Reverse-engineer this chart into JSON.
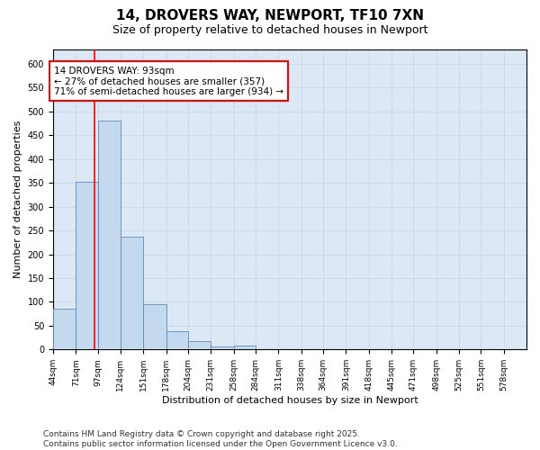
{
  "title1": "14, DROVERS WAY, NEWPORT, TF10 7XN",
  "title2": "Size of property relative to detached houses in Newport",
  "xlabel": "Distribution of detached houses by size in Newport",
  "ylabel": "Number of detached properties",
  "bar_color": "#c5d9ee",
  "bar_edge_color": "#5b8db8",
  "grid_color": "#c8d8e8",
  "background_color": "#dce8f5",
  "bin_edges": [
    44,
    71,
    97,
    124,
    151,
    178,
    204,
    231,
    258,
    284,
    311,
    338,
    364,
    391,
    418,
    445,
    471,
    498,
    525,
    551,
    578
  ],
  "bar_heights": [
    85,
    353,
    480,
    237,
    95,
    38,
    18,
    6,
    8,
    0,
    0,
    0,
    0,
    0,
    0,
    0,
    0,
    0,
    0,
    0
  ],
  "red_line_x": 93,
  "annotation_line1": "14 DROVERS WAY: 93sqm",
  "annotation_line2": "← 27% of detached houses are smaller (357)",
  "annotation_line3": "71% of semi-detached houses are larger (934) →",
  "annotation_box_color": "white",
  "annotation_edge_color": "red",
  "ylim": [
    0,
    630
  ],
  "yticks": [
    0,
    50,
    100,
    150,
    200,
    250,
    300,
    350,
    400,
    450,
    500,
    550,
    600
  ],
  "footer_line1": "Contains HM Land Registry data © Crown copyright and database right 2025.",
  "footer_line2": "Contains public sector information licensed under the Open Government Licence v3.0.",
  "title1_fontsize": 11,
  "title2_fontsize": 9,
  "axis_label_fontsize": 8,
  "tick_fontsize": 7,
  "annotation_fontsize": 7.5,
  "footer_fontsize": 6.5
}
